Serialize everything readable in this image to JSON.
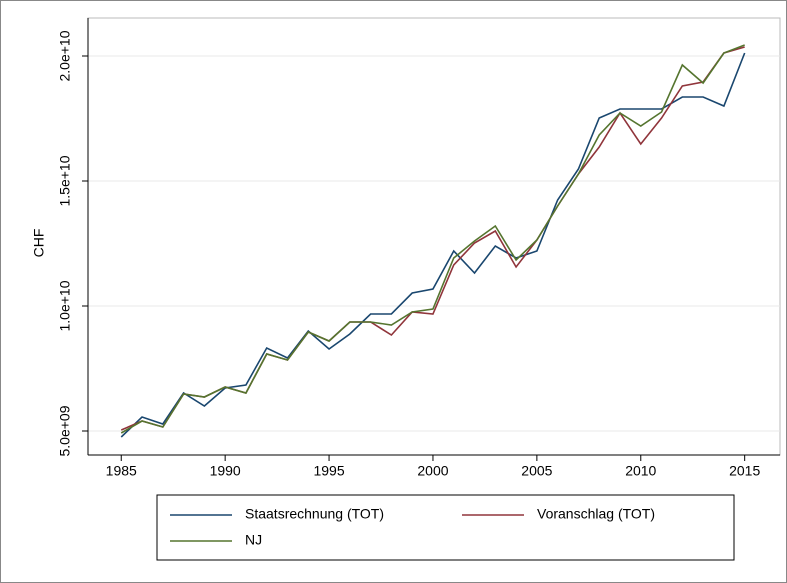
{
  "chart_data": {
    "type": "line",
    "y_label": "CHF",
    "x": [
      1985,
      1986,
      1987,
      1988,
      1989,
      1990,
      1991,
      1992,
      1993,
      1994,
      1995,
      1996,
      1997,
      1998,
      1999,
      2000,
      2001,
      2002,
      2003,
      2004,
      2005,
      2006,
      2007,
      2008,
      2009,
      2010,
      2011,
      2012,
      2013,
      2014,
      2015
    ],
    "series": [
      {
        "name": "Staatsrechnung (TOT)",
        "color": "#1a476f",
        "values": [
          4760000000,
          5560000000,
          5280000000,
          6520000000,
          6000000000,
          6720000000,
          6840000000,
          8320000000,
          7920000000,
          9000000000,
          8280000000,
          8880000000,
          9680000000,
          9680000000,
          10520000000,
          10680000000,
          12200000000,
          11320000000,
          12400000000,
          11920000000,
          12200000000,
          14240000000,
          15480000000,
          17520000000,
          17880000000,
          17880000000,
          17880000000,
          18360000000,
          18360000000,
          18000000000,
          20120000000
        ]
      },
      {
        "name": "Voranschlag (TOT)",
        "color": "#90353b",
        "values": [
          5040000000,
          5400000000,
          5160000000,
          6480000000,
          6360000000,
          6760000000,
          6520000000,
          8080000000,
          7840000000,
          8960000000,
          8600000000,
          9360000000,
          9360000000,
          8840000000,
          9760000000,
          9680000000,
          11640000000,
          12520000000,
          13000000000,
          11560000000,
          12640000000,
          14000000000,
          15280000000,
          16360000000,
          17720000000,
          16480000000,
          17520000000,
          18800000000,
          18960000000,
          20120000000,
          20360000000
        ]
      },
      {
        "name": "NJ",
        "color": "#55752f",
        "values": [
          4920000000,
          5400000000,
          5160000000,
          6480000000,
          6360000000,
          6760000000,
          6520000000,
          8080000000,
          7840000000,
          8960000000,
          8600000000,
          9360000000,
          9360000000,
          9240000000,
          9760000000,
          9880000000,
          11920000000,
          12600000000,
          13200000000,
          11840000000,
          12640000000,
          14000000000,
          15280000000,
          16840000000,
          17720000000,
          17200000000,
          17760000000,
          19640000000,
          18920000000,
          20120000000,
          20440000000
        ]
      }
    ],
    "xlim": [
      1983.4,
      2016.7
    ],
    "xticks": [
      1985,
      1990,
      1995,
      2000,
      2005,
      2010,
      2015
    ],
    "ylim": [
      4040000000,
      21520000000
    ],
    "yticks": [
      {
        "value": 5000000000,
        "label": "5.0e+09"
      },
      {
        "value": 10000000000,
        "label": "1.0e+10"
      },
      {
        "value": 15000000000,
        "label": "1.5e+10"
      },
      {
        "value": 20000000000,
        "label": "2.0e+10"
      }
    ],
    "grid": true,
    "legend": "bottom"
  }
}
